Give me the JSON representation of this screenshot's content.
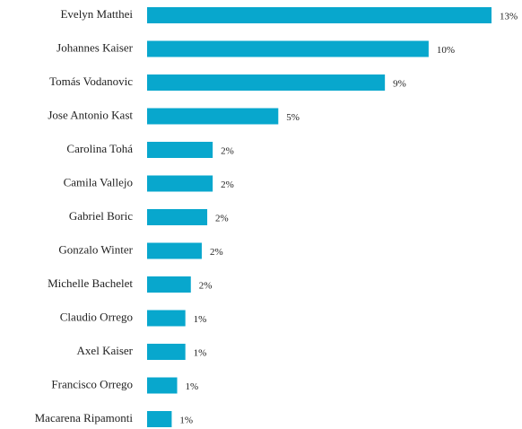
{
  "chart_data": {
    "type": "barh",
    "color": "#08a7cd",
    "categories": [
      "Evelyn Matthei",
      "Johannes Kaiser",
      "Tomás Vodanovic",
      "Jose Antonio Kast",
      "Carolina Tohá",
      "Camila Vallejo",
      "Gabriel Boric",
      "Gonzalo Winter",
      "Michelle Bachelet",
      "Claudio Orrego",
      "Axel Kaiser",
      "Francisco Orrego",
      "Macarena Ripamonti"
    ],
    "values": [
      12.6,
      10.3,
      8.7,
      4.8,
      2.4,
      2.4,
      2.2,
      2.0,
      1.6,
      1.4,
      1.4,
      1.1,
      0.9
    ],
    "value_labels": [
      "13%",
      "10%",
      "9%",
      "5%",
      "2%",
      "2%",
      "2%",
      "2%",
      "2%",
      "1%",
      "1%",
      "1%",
      "1%"
    ]
  }
}
